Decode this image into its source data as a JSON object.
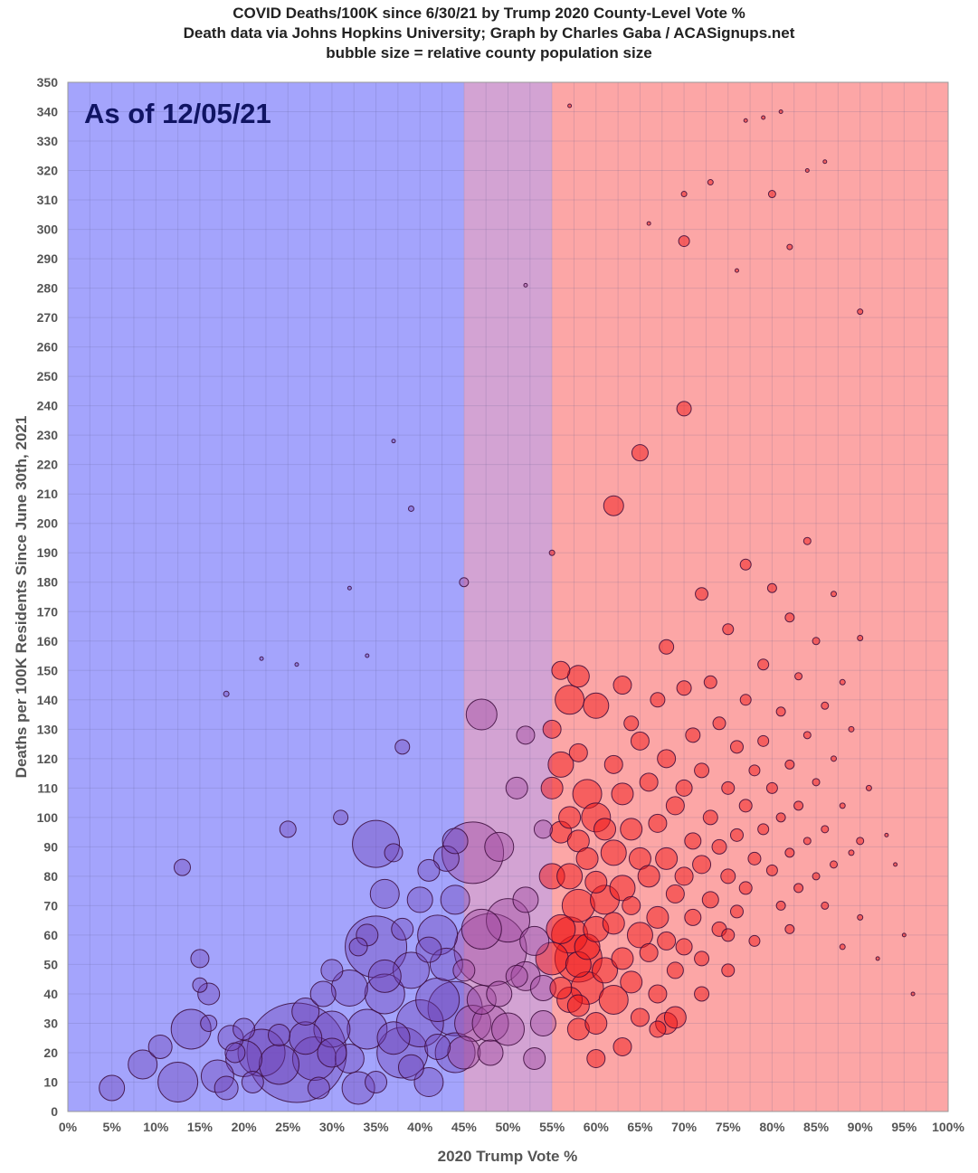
{
  "chart_data": {
    "type": "scatter",
    "title": "COVID Deaths/100K since 6/30/21 by Trump 2020 County-Level Vote %",
    "subtitle": "Death data via Johns Hopkins University; Graph by Charles Gaba / ACASignups.net",
    "note": "bubble size = relative county population size",
    "annotation": "As of 12/05/21",
    "xlabel": "2020 Trump Vote %",
    "ylabel": "Deaths per 100K Residents Since June 30th, 2021",
    "xlim": [
      0,
      100
    ],
    "ylim": [
      0,
      350
    ],
    "x_ticks": [
      0,
      5,
      10,
      15,
      20,
      25,
      30,
      35,
      40,
      45,
      50,
      55,
      60,
      65,
      70,
      75,
      80,
      85,
      90,
      95,
      100
    ],
    "y_ticks": [
      0,
      10,
      20,
      30,
      40,
      50,
      60,
      70,
      80,
      90,
      100,
      110,
      120,
      130,
      140,
      150,
      160,
      170,
      180,
      190,
      200,
      210,
      220,
      230,
      240,
      250,
      260,
      270,
      280,
      290,
      300,
      310,
      320,
      330,
      340,
      350
    ],
    "x_tick_suffix": "%",
    "grid": true,
    "bands": [
      {
        "from": 0,
        "to": 45,
        "color": "#a4a4fc"
      },
      {
        "from": 45,
        "to": 55,
        "color": "#d3a3d3"
      },
      {
        "from": 55,
        "to": 100,
        "color": "#fca6a6"
      }
    ],
    "marker_colors": {
      "blue": "#6c3eb4",
      "purple": "#a34aa0",
      "red": "#f01818",
      "stroke": "#3a0a3a"
    },
    "points": [
      [
        5,
        8,
        14
      ],
      [
        8.5,
        16,
        16
      ],
      [
        10.5,
        22,
        13
      ],
      [
        12.5,
        10,
        22
      ],
      [
        13,
        83,
        9
      ],
      [
        14,
        28,
        22
      ],
      [
        15,
        52,
        10
      ],
      [
        15,
        43,
        8
      ],
      [
        16,
        40,
        12
      ],
      [
        16,
        30,
        9
      ],
      [
        17,
        12,
        18
      ],
      [
        18,
        8,
        13
      ],
      [
        18.5,
        25,
        14
      ],
      [
        19,
        20,
        11
      ],
      [
        20,
        18,
        20
      ],
      [
        21,
        10,
        12
      ],
      [
        22,
        20,
        26
      ],
      [
        24,
        16,
        22
      ],
      [
        25,
        96,
        9
      ],
      [
        26,
        20,
        55
      ],
      [
        27,
        34,
        15
      ],
      [
        27,
        25,
        18
      ],
      [
        28,
        18,
        24
      ],
      [
        28.5,
        8,
        12
      ],
      [
        29,
        40,
        14
      ],
      [
        30,
        48,
        12
      ],
      [
        30,
        28,
        20
      ],
      [
        31,
        100,
        8
      ],
      [
        32,
        42,
        20
      ],
      [
        32,
        18,
        16
      ],
      [
        33,
        8,
        18
      ],
      [
        34,
        28,
        22
      ],
      [
        34,
        60,
        12
      ],
      [
        35,
        91,
        26
      ],
      [
        35,
        56,
        34
      ],
      [
        35,
        10,
        12
      ],
      [
        36,
        74,
        16
      ],
      [
        36,
        40,
        22
      ],
      [
        37,
        88,
        10
      ],
      [
        37,
        25,
        18
      ],
      [
        38,
        124,
        8
      ],
      [
        38,
        62,
        12
      ],
      [
        38,
        20,
        28
      ],
      [
        39,
        48,
        20
      ],
      [
        39,
        15,
        14
      ],
      [
        40,
        30,
        26
      ],
      [
        40,
        72,
        14
      ],
      [
        41,
        82,
        12
      ],
      [
        41,
        10,
        16
      ],
      [
        42,
        38,
        24
      ],
      [
        42,
        60,
        22
      ],
      [
        42,
        22,
        14
      ],
      [
        43,
        86,
        14
      ],
      [
        43,
        50,
        18
      ],
      [
        44,
        35,
        30
      ],
      [
        44,
        72,
        16
      ],
      [
        44,
        92,
        14
      ],
      [
        45,
        20,
        18
      ],
      [
        45,
        180,
        5
      ],
      [
        45,
        48,
        12
      ],
      [
        46,
        30,
        20
      ],
      [
        46,
        88,
        34
      ],
      [
        47,
        135,
        17
      ],
      [
        47,
        62,
        22
      ],
      [
        47,
        38,
        16
      ],
      [
        48,
        55,
        40
      ],
      [
        48,
        20,
        14
      ],
      [
        49,
        90,
        16
      ],
      [
        49,
        40,
        14
      ],
      [
        50,
        65,
        24
      ],
      [
        50,
        28,
        18
      ],
      [
        51,
        110,
        12
      ],
      [
        51,
        46,
        12
      ],
      [
        52,
        128,
        10
      ],
      [
        52,
        72,
        14
      ],
      [
        53,
        58,
        16
      ],
      [
        53,
        18,
        12
      ],
      [
        54,
        96,
        10
      ],
      [
        54,
        42,
        14
      ],
      [
        55,
        130,
        10
      ],
      [
        55,
        110,
        12
      ],
      [
        55,
        80,
        14
      ],
      [
        55,
        52,
        18
      ],
      [
        56,
        150,
        10
      ],
      [
        56,
        118,
        14
      ],
      [
        56,
        95,
        12
      ],
      [
        56,
        62,
        16
      ],
      [
        56,
        42,
        12
      ],
      [
        57,
        140,
        16
      ],
      [
        57,
        100,
        12
      ],
      [
        57,
        80,
        14
      ],
      [
        57,
        60,
        20
      ],
      [
        57,
        38,
        14
      ],
      [
        58,
        148,
        12
      ],
      [
        58,
        122,
        10
      ],
      [
        58,
        92,
        12
      ],
      [
        58,
        70,
        18
      ],
      [
        58,
        50,
        14
      ],
      [
        58,
        28,
        12
      ],
      [
        59,
        108,
        16
      ],
      [
        59,
        86,
        12
      ],
      [
        59,
        56,
        14
      ],
      [
        59,
        42,
        18
      ],
      [
        60,
        138,
        14
      ],
      [
        60,
        100,
        16
      ],
      [
        60,
        78,
        12
      ],
      [
        60,
        62,
        14
      ],
      [
        60,
        30,
        12
      ],
      [
        61,
        96,
        12
      ],
      [
        61,
        72,
        16
      ],
      [
        61,
        48,
        14
      ],
      [
        62,
        206,
        11
      ],
      [
        62,
        118,
        10
      ],
      [
        62,
        88,
        14
      ],
      [
        62,
        64,
        12
      ],
      [
        62,
        38,
        16
      ],
      [
        63,
        145,
        10
      ],
      [
        63,
        108,
        12
      ],
      [
        63,
        76,
        14
      ],
      [
        63,
        52,
        12
      ],
      [
        64,
        132,
        8
      ],
      [
        64,
        96,
        12
      ],
      [
        64,
        70,
        10
      ],
      [
        64,
        44,
        12
      ],
      [
        65,
        224,
        9
      ],
      [
        65,
        126,
        10
      ],
      [
        65,
        86,
        12
      ],
      [
        65,
        60,
        14
      ],
      [
        65,
        32,
        10
      ],
      [
        66,
        112,
        10
      ],
      [
        66,
        80,
        12
      ],
      [
        66,
        54,
        10
      ],
      [
        67,
        140,
        8
      ],
      [
        67,
        98,
        10
      ],
      [
        67,
        66,
        12
      ],
      [
        67,
        40,
        10
      ],
      [
        68,
        158,
        8
      ],
      [
        68,
        120,
        10
      ],
      [
        68,
        86,
        12
      ],
      [
        68,
        58,
        10
      ],
      [
        68,
        30,
        12
      ],
      [
        69,
        104,
        10
      ],
      [
        69,
        74,
        10
      ],
      [
        69,
        48,
        9
      ],
      [
        70,
        239,
        8
      ],
      [
        70,
        296,
        6
      ],
      [
        70,
        144,
        8
      ],
      [
        70,
        110,
        9
      ],
      [
        70,
        80,
        10
      ],
      [
        70,
        56,
        9
      ],
      [
        71,
        128,
        8
      ],
      [
        71,
        92,
        9
      ],
      [
        71,
        66,
        9
      ],
      [
        72,
        176,
        7
      ],
      [
        72,
        116,
        8
      ],
      [
        72,
        84,
        10
      ],
      [
        72,
        52,
        8
      ],
      [
        73,
        146,
        7
      ],
      [
        73,
        100,
        8
      ],
      [
        73,
        72,
        9
      ],
      [
        74,
        132,
        7
      ],
      [
        74,
        90,
        8
      ],
      [
        74,
        62,
        8
      ],
      [
        75,
        164,
        6
      ],
      [
        75,
        110,
        7
      ],
      [
        75,
        80,
        8
      ],
      [
        75,
        48,
        7
      ],
      [
        76,
        124,
        7
      ],
      [
        76,
        94,
        7
      ],
      [
        76,
        68,
        7
      ],
      [
        77,
        186,
        6
      ],
      [
        77,
        140,
        6
      ],
      [
        77,
        104,
        7
      ],
      [
        77,
        76,
        7
      ],
      [
        78,
        116,
        6
      ],
      [
        78,
        86,
        7
      ],
      [
        78,
        58,
        6
      ],
      [
        79,
        152,
        6
      ],
      [
        79,
        126,
        6
      ],
      [
        79,
        96,
        6
      ],
      [
        80,
        312,
        4
      ],
      [
        80,
        178,
        5
      ],
      [
        80,
        110,
        6
      ],
      [
        80,
        82,
        6
      ],
      [
        81,
        136,
        5
      ],
      [
        81,
        100,
        5
      ],
      [
        81,
        70,
        5
      ],
      [
        82,
        168,
        5
      ],
      [
        82,
        118,
        5
      ],
      [
        82,
        88,
        5
      ],
      [
        83,
        148,
        4
      ],
      [
        83,
        104,
        5
      ],
      [
        83,
        76,
        5
      ],
      [
        84,
        194,
        4
      ],
      [
        84,
        128,
        4
      ],
      [
        84,
        92,
        4
      ],
      [
        85,
        160,
        4
      ],
      [
        85,
        112,
        4
      ],
      [
        85,
        80,
        4
      ],
      [
        86,
        138,
        4
      ],
      [
        86,
        96,
        4
      ],
      [
        87,
        176,
        3
      ],
      [
        87,
        120,
        3
      ],
      [
        87,
        84,
        4
      ],
      [
        88,
        146,
        3
      ],
      [
        88,
        104,
        3
      ],
      [
        89,
        130,
        3
      ],
      [
        89,
        88,
        3
      ],
      [
        90,
        161,
        3
      ],
      [
        90,
        92,
        4
      ],
      [
        90,
        272,
        3
      ],
      [
        91,
        110,
        3
      ],
      [
        93,
        94,
        2
      ],
      [
        94,
        84,
        2
      ],
      [
        95,
        60,
        2
      ],
      [
        96,
        40,
        2
      ],
      [
        37,
        228,
        2
      ],
      [
        39,
        205,
        3
      ],
      [
        32,
        178,
        2
      ],
      [
        34,
        155,
        2
      ],
      [
        22,
        154,
        2
      ],
      [
        26,
        152,
        2
      ],
      [
        18,
        142,
        3
      ],
      [
        52,
        281,
        2
      ],
      [
        55,
        190,
        3
      ],
      [
        57,
        342,
        2
      ],
      [
        70,
        312,
        3
      ],
      [
        73,
        316,
        3
      ],
      [
        77,
        337,
        2
      ],
      [
        79,
        338,
        2
      ],
      [
        81,
        340,
        2
      ],
      [
        84,
        320,
        2
      ],
      [
        86,
        323,
        2
      ],
      [
        66,
        302,
        2
      ],
      [
        82,
        294,
        3
      ],
      [
        76,
        286,
        2
      ],
      [
        58,
        52,
        26
      ],
      [
        48,
        30,
        20
      ],
      [
        20,
        28,
        12
      ],
      [
        33,
        56,
        10
      ],
      [
        44,
        20,
        22
      ],
      [
        30,
        20,
        16
      ],
      [
        24,
        26,
        12
      ],
      [
        36,
        46,
        18
      ],
      [
        52,
        46,
        16
      ],
      [
        54,
        30,
        14
      ],
      [
        41,
        55,
        14
      ],
      [
        58,
        36,
        12
      ],
      [
        63,
        22,
        10
      ],
      [
        67,
        28,
        9
      ],
      [
        69,
        32,
        12
      ],
      [
        72,
        40,
        8
      ],
      [
        60,
        18,
        10
      ],
      [
        75,
        60,
        7
      ],
      [
        82,
        62,
        5
      ],
      [
        86,
        70,
        4
      ],
      [
        88,
        56,
        3
      ],
      [
        90,
        66,
        3
      ],
      [
        92,
        52,
        2
      ]
    ]
  }
}
